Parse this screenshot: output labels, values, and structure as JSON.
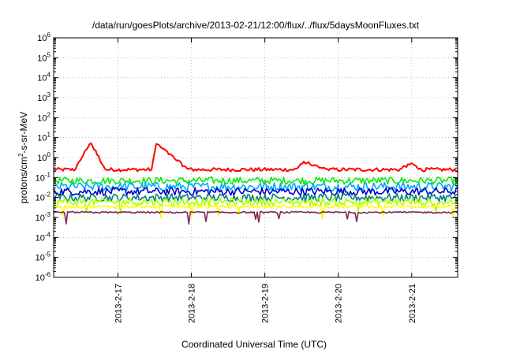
{
  "chart_data": {
    "type": "line",
    "title": "/data/run/goesPlots/archive/2013-02-21/12:00/flux/../flux/5daysMoonFluxes.txt",
    "xlabel": "Coordinated Universal Time (UTC)",
    "ylabel": {
      "prefix": "protons/cm",
      "sup": "2",
      "suffix": "-s-sr-MeV"
    },
    "yscale": "log",
    "ylim": [
      1e-06,
      1000000.0
    ],
    "y_ticks": [
      {
        "base": "10",
        "exp": "-6",
        "value": 1e-06
      },
      {
        "base": "10",
        "exp": "-5",
        "value": 1e-05
      },
      {
        "base": "10",
        "exp": "-4",
        "value": 0.0001
      },
      {
        "base": "10",
        "exp": "-3",
        "value": 0.001
      },
      {
        "base": "10",
        "exp": "-2",
        "value": 0.01
      },
      {
        "base": "10",
        "exp": "-1",
        "value": 0.1
      },
      {
        "base": "10",
        "exp": "0",
        "value": 1
      },
      {
        "base": "10",
        "exp": "1",
        "value": 10
      },
      {
        "base": "10",
        "exp": "2",
        "value": 100
      },
      {
        "base": "10",
        "exp": "3",
        "value": 1000
      },
      {
        "base": "10",
        "exp": "4",
        "value": 10000
      },
      {
        "base": "10",
        "exp": "5",
        "value": 100000
      },
      {
        "base": "10",
        "exp": "6",
        "value": 1000000
      }
    ],
    "xlim": [
      "2013-02-16 03:00",
      "2013-02-21 15:00"
    ],
    "x_ticks": [
      {
        "label": "2013-2-17",
        "value": "2013-02-17 00:00"
      },
      {
        "label": "2013-2-18",
        "value": "2013-02-18 00:00"
      },
      {
        "label": "2013-2-19",
        "value": "2013-02-19 00:00"
      },
      {
        "label": "2013-2-20",
        "value": "2013-02-20 00:00"
      },
      {
        "label": "2013-2-21",
        "value": "2013-02-21 00:00"
      }
    ],
    "grid": true,
    "legend": "none",
    "series": [
      {
        "color": "#ff0000",
        "base": 0.25,
        "noise": 0.18,
        "events": [
          {
            "start": "2013-02-16 10:00",
            "peak_time": "2013-02-16 15:00",
            "end": "2013-02-16 20:00",
            "peak": 6
          },
          {
            "start": "2013-02-17 11:00",
            "peak_time": "2013-02-17 12:30",
            "end": "2013-02-17 23:00",
            "peak": 5
          },
          {
            "start": "2013-02-19 10:00",
            "peak_time": "2013-02-19 13:00",
            "end": "2013-02-19 20:00",
            "peak": 0.6
          },
          {
            "start": "2013-02-20 20:00",
            "peak_time": "2013-02-21 00:00",
            "end": "2013-02-21 03:00",
            "peak": 0.5
          }
        ]
      },
      {
        "color": "#00ee00",
        "base": 0.07,
        "noise": 0.35
      },
      {
        "color": "#00aaff",
        "base": 0.035,
        "noise": 0.45
      },
      {
        "color": "#0000cc",
        "base": 0.02,
        "noise": 0.4
      },
      {
        "color": "#008080",
        "base": 0.01,
        "noise": 0.4
      },
      {
        "color": "#aaff00",
        "base": 0.006,
        "noise": 0.4
      },
      {
        "color": "#ffff00",
        "base": 0.0035,
        "noise": 0.15
      },
      {
        "color": "#7b2a52",
        "base": 0.0018,
        "noise": 0.08
      }
    ]
  }
}
